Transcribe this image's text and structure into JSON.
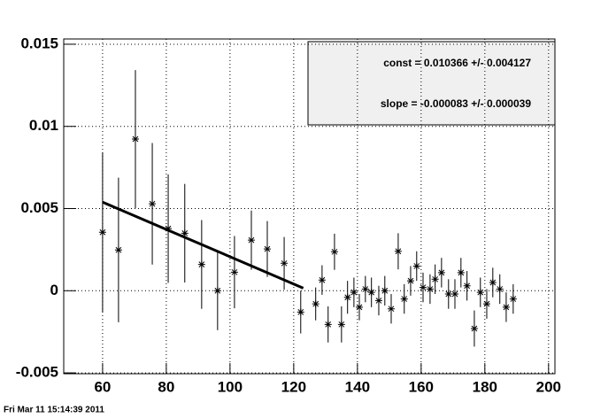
{
  "chart_data": {
    "type": "scatter",
    "x": [
      60,
      65,
      70.3,
      75.6,
      80.6,
      85.8,
      91.1,
      96.1,
      101.4,
      106.7,
      111.7,
      117,
      122.2,
      126.9,
      128.9,
      130.8,
      132.8,
      135,
      136.9,
      138.9,
      140.6,
      142.5,
      144.4,
      146.7,
      148.6,
      150.6,
      152.8,
      154.7,
      156.7,
      158.6,
      160.6,
      162.8,
      164.4,
      166.4,
      168.6,
      170.6,
      172.5,
      174.4,
      176.7,
      178.6,
      180.6,
      182.5,
      184.7,
      186.7,
      188.9
    ],
    "values": [
      0.00356,
      0.00248,
      0.00923,
      0.00529,
      0.00378,
      0.0035,
      0.0016,
      0.0,
      0.00113,
      0.00308,
      0.00254,
      0.00167,
      -0.0013,
      -0.0008,
      0.00065,
      -0.00205,
      0.00237,
      -0.00205,
      -0.0004,
      -0.0001,
      -0.001,
      0.0001,
      -0.0001,
      -0.0006,
      0.0,
      -0.0011,
      0.0024,
      -0.0005,
      0.0006,
      0.0015,
      0.0002,
      0.0001,
      0.0007,
      0.0011,
      -0.0002,
      -0.0002,
      0.0011,
      0.0003,
      -0.0023,
      -0.0001,
      -0.0008,
      0.0005,
      0.0001,
      -0.001,
      -0.0005
    ],
    "errors": [
      0.00486,
      0.0044,
      0.0042,
      0.0037,
      0.0033,
      0.003,
      0.0027,
      0.0024,
      0.0022,
      0.0018,
      0.0017,
      0.0016,
      0.0013,
      0.001,
      0.0009,
      0.0011,
      0.0011,
      0.0011,
      0.001,
      0.0009,
      0.0008,
      0.0008,
      0.0009,
      0.0009,
      0.0009,
      0.0009,
      0.0011,
      0.0009,
      0.0009,
      0.0009,
      0.0009,
      0.0009,
      0.0009,
      0.0009,
      0.0009,
      0.0009,
      0.0009,
      0.0009,
      0.0011,
      0.0009,
      0.0009,
      0.0009,
      0.0009,
      0.0009,
      0.0009
    ],
    "color": "#000000",
    "fit": {
      "x": [
        60,
        123
      ],
      "values": [
        0.00539,
        0.00016
      ],
      "color": "#000000"
    },
    "xlim": [
      47.8,
      202
    ],
    "xticks": [
      60,
      80,
      100,
      120,
      140,
      160,
      180,
      200
    ],
    "ylim": [
      -0.00505,
      0.01532
    ],
    "yticks": [
      -0.005,
      0,
      0.005,
      0.01,
      0.015
    ],
    "grid": true,
    "annotations": [
      "const = 0.010366 +/- 0.004127",
      "slope = -0.000083 +/- 0.000039"
    ],
    "timestamp": "Fri Mar 11 15:14:39 2011"
  }
}
